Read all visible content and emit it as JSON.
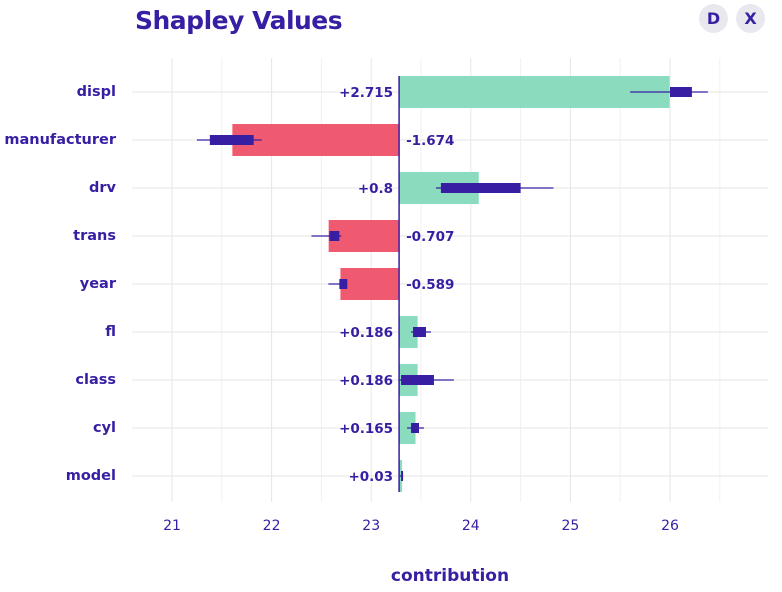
{
  "title": "Shapley Values",
  "buttons": {
    "d_label": "D",
    "x_label": "X"
  },
  "colors": {
    "positive": "#8bdcbe",
    "negative": "#f05a71",
    "accent": "#371ea3",
    "grid": "#e6e6e6"
  },
  "chart_data": {
    "type": "bar",
    "orientation": "horizontal",
    "baseline": 23.28,
    "xlabel": "contribution",
    "xlim": [
      20.6,
      26.9
    ],
    "xticks": [
      21,
      22,
      23,
      24,
      25,
      26
    ],
    "grid": true,
    "bars": [
      {
        "variable": "displ",
        "value": 2.715,
        "label": "+2.715",
        "box": [
          26.0,
          26.22
        ],
        "whisker": [
          25.6,
          26.38
        ]
      },
      {
        "variable": "manufacturer",
        "value": -1.674,
        "label": "-1.674",
        "box": [
          21.38,
          21.82
        ],
        "whisker": [
          21.25,
          21.9
        ]
      },
      {
        "variable": "drv",
        "value": 0.8,
        "label": "+0.8",
        "box": [
          23.7,
          24.5
        ],
        "whisker": [
          23.65,
          24.83
        ]
      },
      {
        "variable": "trans",
        "value": -0.707,
        "label": "-0.707",
        "box": [
          22.58,
          22.68
        ],
        "whisker": [
          22.4,
          22.7
        ]
      },
      {
        "variable": "year",
        "value": -0.589,
        "label": "-0.589",
        "box": [
          22.68,
          22.76
        ],
        "whisker": [
          22.57,
          22.76
        ]
      },
      {
        "variable": "fl",
        "value": 0.186,
        "label": "+0.186",
        "box": [
          23.42,
          23.55
        ],
        "whisker": [
          23.4,
          23.6
        ]
      },
      {
        "variable": "class",
        "value": 0.186,
        "label": "+0.186",
        "box": [
          23.3,
          23.63
        ],
        "whisker": [
          23.28,
          23.83
        ]
      },
      {
        "variable": "cyl",
        "value": 0.165,
        "label": "+0.165",
        "box": [
          23.4,
          23.48
        ],
        "whisker": [
          23.36,
          23.53
        ]
      },
      {
        "variable": "model",
        "value": 0.03,
        "label": "+0.03",
        "box": [
          23.3,
          23.31
        ],
        "whisker": [
          23.29,
          23.32
        ]
      }
    ]
  }
}
